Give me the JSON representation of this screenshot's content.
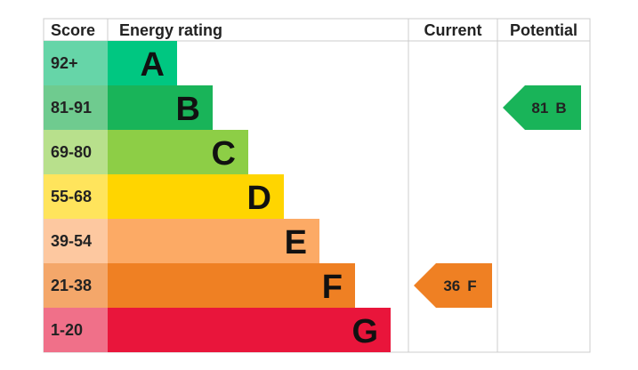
{
  "headers": {
    "score": "Score",
    "rating": "Energy rating",
    "current": "Current",
    "potential": "Potential"
  },
  "bands": [
    {
      "score": "92+",
      "letter": "A",
      "color": "#00c781",
      "light": "#66d5a8"
    },
    {
      "score": "81-91",
      "letter": "B",
      "color": "#19b459",
      "light": "#6fcb8f"
    },
    {
      "score": "69-80",
      "letter": "C",
      "color": "#8dce46",
      "light": "#b8e08c"
    },
    {
      "score": "55-68",
      "letter": "D",
      "color": "#ffd500",
      "light": "#ffe45c"
    },
    {
      "score": "39-54",
      "letter": "E",
      "color": "#fcaa65",
      "light": "#fdc8a0"
    },
    {
      "score": "21-38",
      "letter": "F",
      "color": "#ef8023",
      "light": "#f4a76a"
    },
    {
      "score": "1-20",
      "letter": "G",
      "color": "#e9153b",
      "light": "#f07089"
    }
  ],
  "current": {
    "value": 36,
    "letter": "F"
  },
  "potential": {
    "value": 81,
    "letter": "B"
  }
}
